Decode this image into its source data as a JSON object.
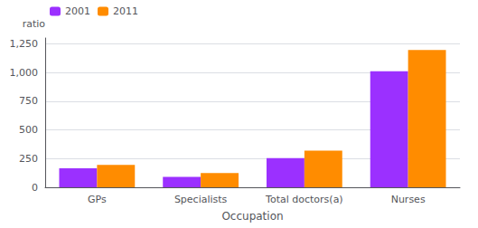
{
  "chart_data": {
    "type": "bar",
    "categories": [
      "GPs",
      "Specialists",
      "Total doctors(a)",
      "Nurses"
    ],
    "series": [
      {
        "name": "2001",
        "color": "#9B30FF",
        "values": [
          165,
          90,
          255,
          1010
        ]
      },
      {
        "name": "2011",
        "color": "#FF8C00",
        "values": [
          195,
          125,
          320,
          1195
        ]
      }
    ],
    "xlabel": "Occupation",
    "ylabel": "ratio",
    "ylim": [
      0,
      1300
    ],
    "yticks": [
      0,
      250,
      500,
      750,
      1000,
      1250
    ],
    "grid": true,
    "legend": "upper left"
  }
}
